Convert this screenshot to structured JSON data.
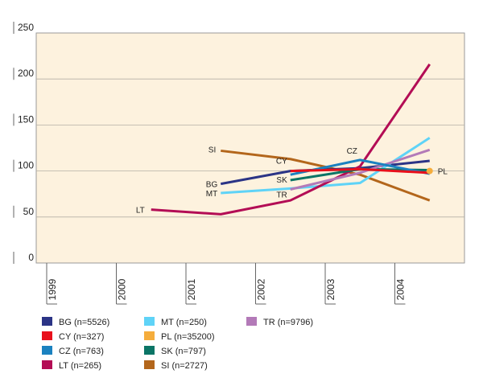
{
  "chart_data": {
    "type": "line",
    "title": "",
    "xlabel": "",
    "ylabel": "",
    "x": [
      "1999",
      "2000",
      "2001",
      "2002",
      "2003",
      "2004"
    ],
    "ylim": [
      0,
      250
    ],
    "yticks": [
      "0",
      "50",
      "100",
      "150",
      "200",
      "250"
    ],
    "grid": true,
    "legend_position": "bottom",
    "series": [
      {
        "name": "BG (n=5526)",
        "color": "#2b3486",
        "label": "BG",
        "points": [
          [
            2001.5,
            86
          ],
          [
            2002.5,
            100
          ],
          [
            2003.5,
            103
          ],
          [
            2004.5,
            111
          ]
        ]
      },
      {
        "name": "CY (n=327)",
        "color": "#e8101c",
        "label": "CY",
        "points": [
          [
            2002.5,
            100
          ],
          [
            2003.5,
            102
          ],
          [
            2004.5,
            98
          ]
        ]
      },
      {
        "name": "CZ (n=763)",
        "color": "#1b82c0",
        "label": "CZ",
        "points": [
          [
            2002.5,
            96
          ],
          [
            2003.5,
            112
          ],
          [
            2004.5,
            97
          ]
        ]
      },
      {
        "name": "LT (n=265)",
        "color": "#b30d55",
        "label": "LT",
        "points": [
          [
            2000.5,
            58
          ],
          [
            2001.5,
            53
          ],
          [
            2002.5,
            68
          ],
          [
            2003.5,
            105
          ],
          [
            2004.5,
            216
          ]
        ]
      },
      {
        "name": "MT (n=250)",
        "color": "#5fd3f7",
        "label": "MT",
        "points": [
          [
            2001.5,
            76
          ],
          [
            2002.5,
            81
          ],
          [
            2003.5,
            87
          ],
          [
            2004.5,
            136
          ]
        ]
      },
      {
        "name": "PL (n=35200)",
        "color": "#f5ad3c",
        "label": "PL",
        "points": [
          [
            2004.5,
            100
          ]
        ]
      },
      {
        "name": "SK (n=797)",
        "color": "#0b7566",
        "label": "SK",
        "points": [
          [
            2002.5,
            90
          ],
          [
            2003.5,
            102
          ],
          [
            2004.5,
            101
          ]
        ]
      },
      {
        "name": "SI (n=2727)",
        "color": "#b3661b",
        "label": "SI",
        "points": [
          [
            2001.5,
            122
          ],
          [
            2002.5,
            113
          ],
          [
            2003.5,
            96
          ],
          [
            2004.5,
            68
          ]
        ]
      },
      {
        "name": "TR (n=9796)",
        "color": "#b37ab8",
        "label": "TR",
        "points": [
          [
            2002.5,
            80
          ],
          [
            2003.5,
            98
          ],
          [
            2004.5,
            123
          ]
        ]
      }
    ]
  }
}
